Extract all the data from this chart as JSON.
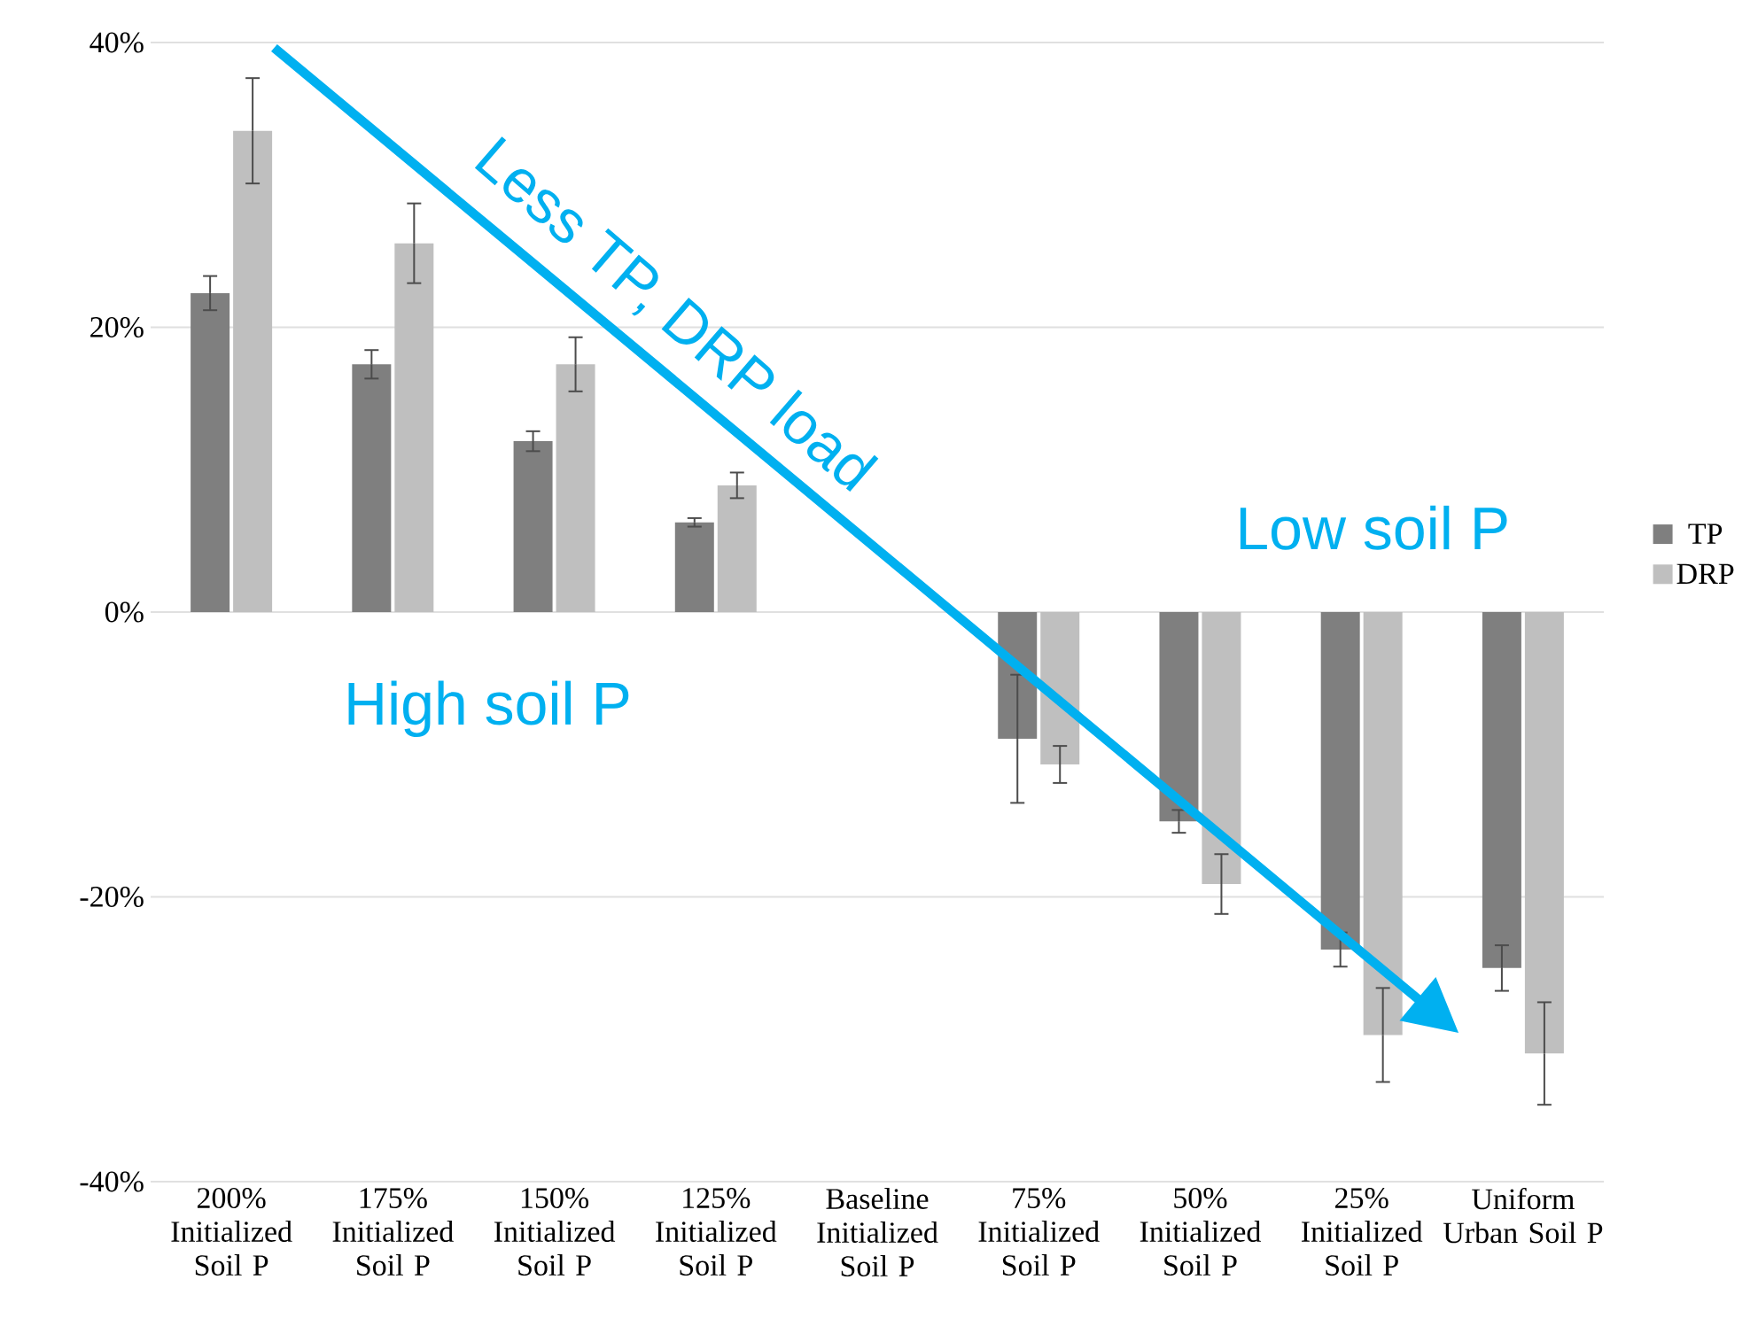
{
  "chart_data": {
    "type": "bar",
    "categories": [
      "200% Initialized Soil P",
      "175% Initialized Soil P",
      "150% Initialized Soil P",
      "125% Initialized Soil P",
      "Baseline Initialized Soil P",
      "75% Initialized Soil P",
      "50% Initialized Soil P",
      "25% Initialized Soil P",
      "Uniform Urban Soil P"
    ],
    "series": [
      {
        "name": "TP",
        "color": "#7f7f7f",
        "values": [
          22.4,
          17.4,
          12.0,
          6.3,
          0,
          -8.9,
          -14.7,
          -23.7,
          -25.0
        ],
        "errors": [
          1.2,
          1.0,
          0.7,
          0.3,
          null,
          4.5,
          0.8,
          1.2,
          1.6
        ]
      },
      {
        "name": "DRP",
        "color": "#bfbfbf",
        "values": [
          33.8,
          25.9,
          17.4,
          8.9,
          0,
          -10.7,
          -19.1,
          -29.7,
          -31.0
        ],
        "errors": [
          3.7,
          2.8,
          1.9,
          0.9,
          null,
          1.3,
          2.1,
          3.3,
          3.6
        ]
      }
    ],
    "ylim": [
      -40,
      40
    ],
    "yticks": [
      {
        "value": -40,
        "label": "-40%"
      },
      {
        "value": -20,
        "label": "-20%"
      },
      {
        "value": 0,
        "label": "0%"
      },
      {
        "value": 20,
        "label": "20%"
      },
      {
        "value": 40,
        "label": "40%"
      }
    ],
    "grid": "y",
    "legend": "right",
    "annotations": [
      "Less TP, DRP load",
      "High soil P",
      "Low soil P"
    ]
  }
}
